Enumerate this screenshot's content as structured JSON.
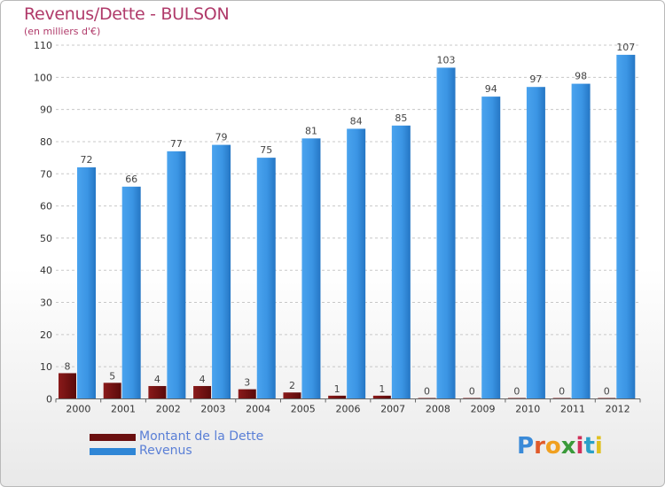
{
  "title": "Revenus/Dette - BULSON",
  "subtitle": "(en milliers d'€)",
  "logo_text": "Proxiti",
  "colors": {
    "debt": "#6b0f0f",
    "revenue": "#2f86d6",
    "title": "#b03a6a",
    "legend_text": "#5a7fd6"
  },
  "chart_data": {
    "type": "bar",
    "categories": [
      "2000",
      "2001",
      "2002",
      "2003",
      "2004",
      "2005",
      "2006",
      "2007",
      "2008",
      "2009",
      "2010",
      "2011",
      "2012"
    ],
    "series": [
      {
        "name": "Montant de la Dette",
        "values": [
          8,
          5,
          4,
          4,
          3,
          2,
          1,
          1,
          0,
          0,
          0,
          0,
          0
        ]
      },
      {
        "name": "Revenus",
        "values": [
          72,
          66,
          77,
          79,
          75,
          81,
          84,
          85,
          103,
          94,
          97,
          98,
          107
        ]
      }
    ],
    "y_ticks": [
      0,
      10,
      20,
      30,
      40,
      50,
      60,
      70,
      80,
      90,
      100,
      110
    ],
    "ylim": [
      0,
      110
    ],
    "grid": true,
    "legend": "bottom-left"
  }
}
